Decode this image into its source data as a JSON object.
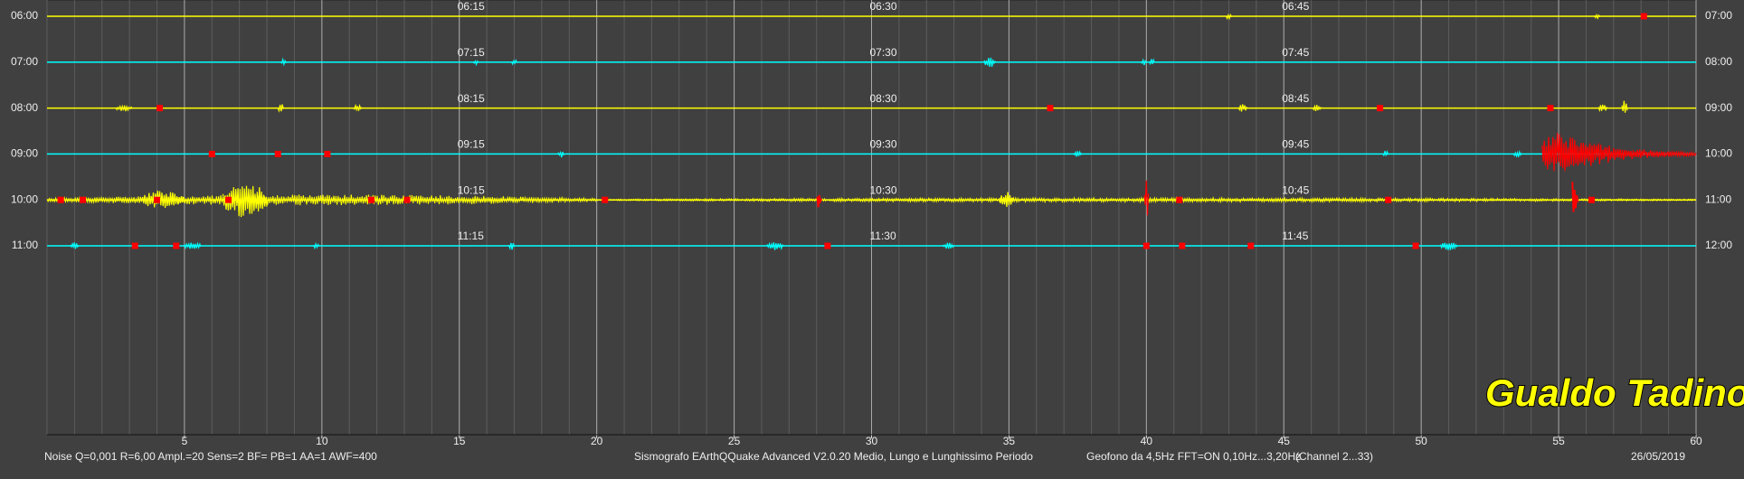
{
  "chart_data": {
    "type": "helicorder",
    "xlim": [
      0,
      60
    ],
    "xticks": [
      5,
      10,
      15,
      20,
      25,
      30,
      35,
      40,
      45,
      50,
      55,
      60
    ],
    "station": "Gualdo Tadino",
    "footer": [
      "Noise Q=0,001 R=6,00 Ampl.=20 Sens=2 BF= PB=1 AA=1 AWF=400",
      "Sismografo  EArthQQuake Advanced V2.0.20  Medio, Lungo e Lunghissimo Periodo",
      "Geofono da 4,5Hz FFT=ON 0,10Hz...3,20Hz",
      "(Channel 2...33)",
      "26/05/2019"
    ],
    "marker_color": "#ff0000",
    "rows": [
      {
        "start": "06:00",
        "end": "07:00",
        "color": "#ffff00",
        "time_ticks": [
          {
            "value": 15,
            "label": "06:15"
          },
          {
            "value": 30,
            "label": "06:30"
          },
          {
            "value": 45,
            "label": "06:45"
          }
        ],
        "noise": [],
        "bursts": [
          {
            "minute": 43,
            "amp": 3,
            "width": 0.2
          },
          {
            "minute": 56.4,
            "amp": 2,
            "width": 0.2
          }
        ],
        "markers": [
          58.1
        ]
      },
      {
        "start": "07:00",
        "end": "08:00",
        "color": "#00ffff",
        "time_ticks": [
          {
            "value": 15,
            "label": "07:15"
          },
          {
            "value": 30,
            "label": "07:30"
          },
          {
            "value": 45,
            "label": "07:45"
          }
        ],
        "noise": [],
        "bursts": [
          {
            "minute": 8.6,
            "amp": 3,
            "width": 0.2
          },
          {
            "minute": 15.6,
            "amp": 3,
            "width": 0.2
          },
          {
            "minute": 17,
            "amp": 3,
            "width": 0.2
          },
          {
            "minute": 34.3,
            "amp": 5,
            "width": 0.4
          },
          {
            "minute": 39.9,
            "amp": 3,
            "width": 0.2
          },
          {
            "minute": 40.2,
            "amp": 3,
            "width": 0.2
          }
        ],
        "markers": []
      },
      {
        "start": "08:00",
        "end": "09:00",
        "color": "#ffff00",
        "time_ticks": [
          {
            "value": 15,
            "label": "08:15"
          },
          {
            "value": 30,
            "label": "08:30"
          },
          {
            "value": 45,
            "label": "08:45"
          }
        ],
        "noise": [],
        "bursts": [
          {
            "minute": 2.8,
            "amp": 3,
            "width": 0.6
          },
          {
            "minute": 8.5,
            "amp": 5,
            "width": 0.2
          },
          {
            "minute": 11.3,
            "amp": 3,
            "width": 0.3
          },
          {
            "minute": 43.5,
            "amp": 4,
            "width": 0.3
          },
          {
            "minute": 46.2,
            "amp": 3,
            "width": 0.3
          },
          {
            "minute": 56.6,
            "amp": 4,
            "width": 0.3
          },
          {
            "minute": 57.4,
            "amp": 7,
            "width": 0.2
          }
        ],
        "markers": [
          4.1,
          36.5,
          48.5,
          54.7
        ]
      },
      {
        "start": "09:00",
        "end": "10:00",
        "color": "#00ffff",
        "time_ticks": [
          {
            "value": 15,
            "label": "09:15"
          },
          {
            "value": 30,
            "label": "09:30"
          },
          {
            "value": 45,
            "label": "09:45"
          }
        ],
        "noise": [],
        "bursts": [
          {
            "minute": 18.7,
            "amp": 4,
            "width": 0.2
          },
          {
            "minute": 37.5,
            "amp": 3,
            "width": 0.3
          },
          {
            "minute": 48.7,
            "amp": 3,
            "width": 0.2
          },
          {
            "minute": 53.5,
            "amp": 3,
            "width": 0.3
          },
          {
            "minute": 57.2,
            "amp": 30,
            "width": 5.6,
            "color": "#ff0000"
          }
        ],
        "markers": [
          6.0,
          8.4,
          10.2
        ]
      },
      {
        "start": "10:00",
        "end": "11:00",
        "color": "#ffff00",
        "time_ticks": [
          {
            "value": 15,
            "label": "10:15"
          },
          {
            "value": 30,
            "label": "10:30"
          },
          {
            "value": 45,
            "label": "10:45"
          }
        ],
        "noise": [
          {
            "from": 0,
            "to": 20,
            "amp": 5
          },
          {
            "from": 20,
            "to": 60,
            "amp": 2
          }
        ],
        "bursts": [
          {
            "minute": 4.2,
            "amp": 9,
            "width": 1.6
          },
          {
            "minute": 7.2,
            "amp": 18,
            "width": 1.6
          },
          {
            "minute": 28.1,
            "amp": 22,
            "width": 0.15,
            "color": "#ff0000"
          },
          {
            "minute": 34.9,
            "amp": 8,
            "width": 0.5
          },
          {
            "minute": 40.0,
            "amp": 18,
            "width": 0.15,
            "color": "#ff0000"
          },
          {
            "minute": 55.6,
            "amp": 65,
            "width": 0.2,
            "color": "#ff0000"
          }
        ],
        "markers": [
          0.5,
          1.3,
          4.0,
          6.6,
          11.8,
          13.1,
          20.3,
          41.2,
          48.8,
          56.2
        ]
      },
      {
        "start": "11:00",
        "end": "12:00",
        "color": "#00ffff",
        "time_ticks": [
          {
            "value": 15,
            "label": "11:15"
          },
          {
            "value": 30,
            "label": "11:30"
          },
          {
            "value": 45,
            "label": "11:45"
          }
        ],
        "noise": [],
        "bursts": [
          {
            "minute": 1.0,
            "amp": 3,
            "width": 0.3
          },
          {
            "minute": 5.3,
            "amp": 4,
            "width": 0.6
          },
          {
            "minute": 9.8,
            "amp": 3,
            "width": 0.2
          },
          {
            "minute": 16.9,
            "amp": 4,
            "width": 0.2
          },
          {
            "minute": 26.5,
            "amp": 4,
            "width": 0.6
          },
          {
            "minute": 32.8,
            "amp": 3,
            "width": 0.4
          },
          {
            "minute": 51.0,
            "amp": 4,
            "width": 0.6
          }
        ],
        "markers": [
          3.2,
          4.7,
          28.4,
          40.0,
          41.3,
          43.8,
          49.8
        ]
      }
    ]
  }
}
